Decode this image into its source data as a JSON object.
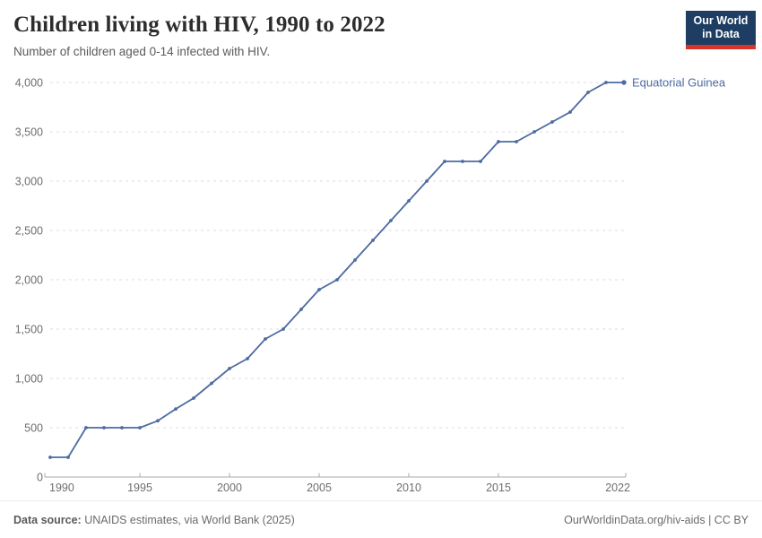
{
  "header": {
    "title": "Children living with HIV, 1990 to 2022",
    "subtitle": "Number of children aged 0-14 infected with HIV."
  },
  "logo": {
    "line1": "Our World",
    "line2": "in Data"
  },
  "chart_data": {
    "type": "line",
    "title": "Children living with HIV, 1990 to 2022",
    "xlabel": "",
    "ylabel": "",
    "xlim": [
      1990,
      2022
    ],
    "ylim": [
      0,
      4000
    ],
    "grid": "dashed-horizontal",
    "legend_position": "end-of-line-label",
    "x": [
      1990,
      1991,
      1992,
      1993,
      1994,
      1995,
      1996,
      1997,
      1998,
      1999,
      2000,
      2001,
      2002,
      2003,
      2004,
      2005,
      2006,
      2007,
      2008,
      2009,
      2010,
      2011,
      2012,
      2013,
      2014,
      2015,
      2016,
      2017,
      2018,
      2019,
      2020,
      2021,
      2022
    ],
    "series": [
      {
        "name": "Equatorial Guinea",
        "values": [
          200,
          200,
          500,
          500,
          500,
          500,
          570,
          690,
          800,
          950,
          1100,
          1200,
          1400,
          1500,
          1700,
          1900,
          2000,
          2200,
          2400,
          2600,
          2800,
          3000,
          3200,
          3200,
          3200,
          3400,
          3400,
          3500,
          3600,
          3700,
          3900,
          4000,
          4000
        ]
      }
    ],
    "y_ticks": [
      {
        "value": 0,
        "label": "0"
      },
      {
        "value": 500,
        "label": "500"
      },
      {
        "value": 1000,
        "label": "1,000"
      },
      {
        "value": 1500,
        "label": "1,500"
      },
      {
        "value": 2000,
        "label": "2,000"
      },
      {
        "value": 2500,
        "label": "2,500"
      },
      {
        "value": 3000,
        "label": "3,000"
      },
      {
        "value": 3500,
        "label": "3,500"
      },
      {
        "value": 4000,
        "label": "4,000"
      }
    ],
    "x_ticks": [
      {
        "value": 1990,
        "label": "1990"
      },
      {
        "value": 1995,
        "label": "1995"
      },
      {
        "value": 2000,
        "label": "2000"
      },
      {
        "value": 2005,
        "label": "2005"
      },
      {
        "value": 2010,
        "label": "2010"
      },
      {
        "value": 2015,
        "label": "2015"
      },
      {
        "value": 2022,
        "label": "2022"
      }
    ],
    "end_label": "Equatorial Guinea"
  },
  "colors": {
    "line": "#4c6ba0",
    "end_label": "#4c6ba0",
    "grid": "#dddddd",
    "axis": "#a9a9a9",
    "axis_text": "#6e6e6e",
    "logo_bg": "#1d3d63",
    "logo_red": "#d8352a"
  },
  "footer": {
    "source_label": "Data source:",
    "source_text": "UNAIDS estimates, via World Bank (2025)",
    "right_text": "OurWorldinData.org/hiv-aids | CC BY"
  }
}
